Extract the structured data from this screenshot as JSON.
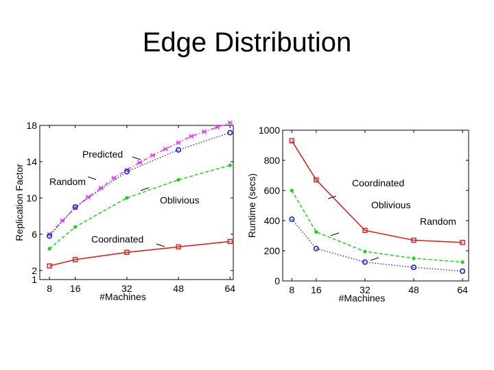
{
  "slide": {
    "title": "Edge Distribution"
  },
  "chart_data": [
    {
      "type": "line",
      "xlabel": "#Machines",
      "ylabel": "Replication Factor",
      "x_ticks": [
        8,
        16,
        32,
        48,
        64
      ],
      "y_ticks": [
        1,
        2,
        6,
        10,
        14,
        18
      ],
      "xlim": [
        5,
        65
      ],
      "ylim": [
        1,
        18
      ],
      "grid": false,
      "series": [
        {
          "name": "Predicted",
          "color": "#ee33ee",
          "marker": "x",
          "dash": "dashdot",
          "x": [
            8,
            12,
            16,
            20,
            24,
            28,
            32,
            36,
            40,
            44,
            48,
            52,
            56,
            60,
            64
          ],
          "y": [
            6.0,
            7.5,
            8.9,
            10.1,
            11.1,
            12.2,
            13.1,
            13.9,
            14.7,
            15.4,
            16.1,
            16.8,
            17.3,
            17.8,
            18.3
          ]
        },
        {
          "name": "Random",
          "color": "#2233cc",
          "marker": "o",
          "dash": "dotted",
          "x": [
            8,
            16,
            32,
            48,
            64
          ],
          "y": [
            5.8,
            9.0,
            12.9,
            15.3,
            17.2
          ]
        },
        {
          "name": "Oblivious",
          "color": "#22cc22",
          "marker": "dot",
          "dash": "dashed",
          "x": [
            8,
            16,
            32,
            48,
            64
          ],
          "y": [
            4.4,
            6.8,
            10.0,
            12.0,
            13.6
          ]
        },
        {
          "name": "Coordinated",
          "color": "#dd2222",
          "marker": "s",
          "dash": "solid",
          "x": [
            8,
            16,
            32,
            48,
            64
          ],
          "y": [
            2.5,
            3.2,
            4.0,
            4.6,
            5.2
          ]
        }
      ],
      "annotations": [
        {
          "text": "Predicted",
          "series": "Predicted",
          "point_index": 7
        },
        {
          "text": "Random",
          "series": "Random",
          "point_index": 1
        },
        {
          "text": "Oblivious",
          "series": "Oblivious",
          "point_index": 2
        },
        {
          "text": "Coordinated",
          "series": "Coordinated",
          "point_index": 3
        }
      ]
    },
    {
      "type": "line",
      "xlabel": "#Machines",
      "ylabel": "Runtime (secs)",
      "x_ticks": [
        8,
        16,
        32,
        48,
        64
      ],
      "y_ticks": [
        0,
        200,
        400,
        600,
        800,
        1000
      ],
      "xlim": [
        5,
        66
      ],
      "ylim": [
        0,
        1000
      ],
      "grid": false,
      "series": [
        {
          "name": "Coordinated",
          "color": "#dd2222",
          "marker": "s",
          "dash": "solid",
          "x": [
            8,
            16,
            32,
            48,
            64
          ],
          "y": [
            930,
            670,
            335,
            270,
            255
          ]
        },
        {
          "name": "Oblivious",
          "color": "#22cc22",
          "marker": "dot",
          "dash": "dashed",
          "x": [
            8,
            16,
            32,
            48,
            64
          ],
          "y": [
            600,
            325,
            195,
            150,
            125
          ]
        },
        {
          "name": "Random",
          "color": "#2233cc",
          "marker": "o",
          "dash": "dotted",
          "x": [
            8,
            16,
            32,
            48,
            64
          ],
          "y": [
            410,
            215,
            125,
            90,
            65
          ]
        }
      ],
      "annotations": [
        {
          "text": "Coordinated",
          "series": "Coordinated",
          "point_index": 1
        },
        {
          "text": "Oblivious",
          "series": "Oblivious",
          "point_index": 1
        },
        {
          "text": "Random",
          "series": "Random",
          "point_index": 3
        }
      ]
    }
  ]
}
